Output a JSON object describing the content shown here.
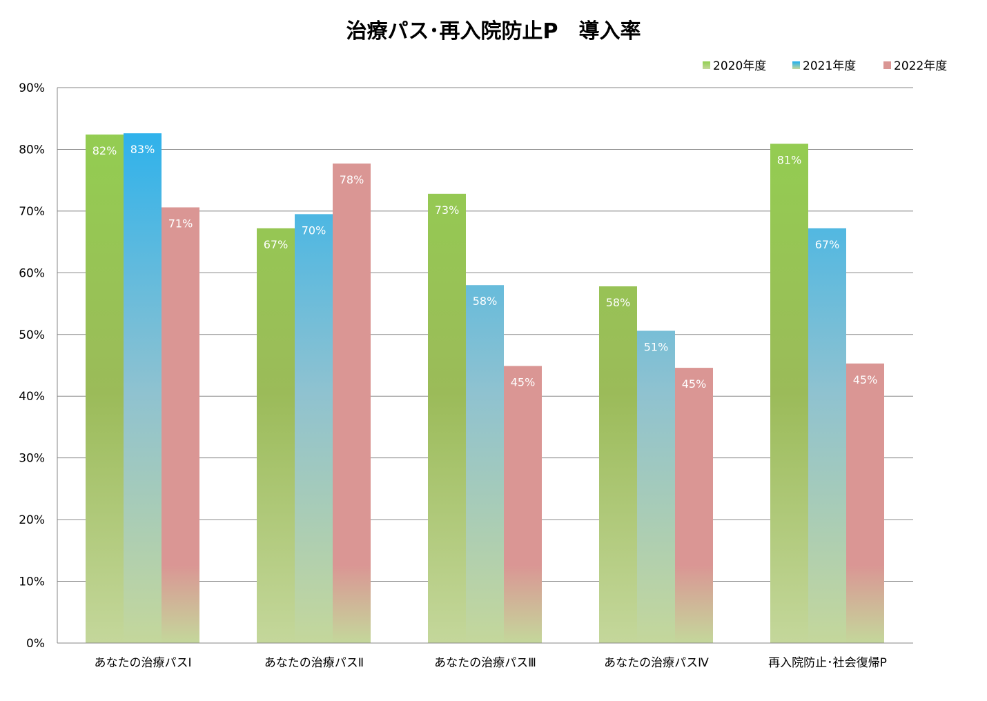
{
  "chart_data": {
    "type": "bar",
    "title": "治療パス･再入院防止P　導入率",
    "xlabel": "",
    "ylabel": "",
    "ylim": [
      0,
      90
    ],
    "ytick_step": 10,
    "y_tick_labels": [
      "0%",
      "10%",
      "20%",
      "30%",
      "40%",
      "50%",
      "60%",
      "70%",
      "80%",
      "90%"
    ],
    "grid": true,
    "legend_position": "top-right",
    "categories": [
      "あなたの治療パスⅠ",
      "あなたの治療パスⅡ",
      "あなたの治療パスⅢ",
      "あなたの治療パスⅣ",
      "再入院防止･社会復帰P"
    ],
    "series": [
      {
        "name": "2020年度",
        "values": [
          82.4,
          67.2,
          72.8,
          57.8,
          80.9
        ],
        "labels": [
          "82%",
          "67%",
          "73%",
          "58%",
          "81%"
        ],
        "color_top": "#92d050",
        "color_mid": "#9bbb59",
        "color_bottom": "#c4d79b"
      },
      {
        "name": "2021年度",
        "values": [
          82.6,
          69.5,
          58.0,
          50.6,
          67.2
        ],
        "labels": [
          "83%",
          "70%",
          "58%",
          "51%",
          "67%"
        ],
        "color_top": "#1eaff0",
        "color_mid": "#8fc2d0",
        "color_bottom": "#c4d79b"
      },
      {
        "name": "2022年度",
        "values": [
          70.6,
          77.7,
          44.9,
          44.6,
          45.3
        ],
        "labels": [
          "71%",
          "78%",
          "45%",
          "45%",
          "45%"
        ],
        "color_top": "#da9694",
        "color_mid": "#da9694",
        "color_bottom": "#c4d79b"
      }
    ]
  }
}
